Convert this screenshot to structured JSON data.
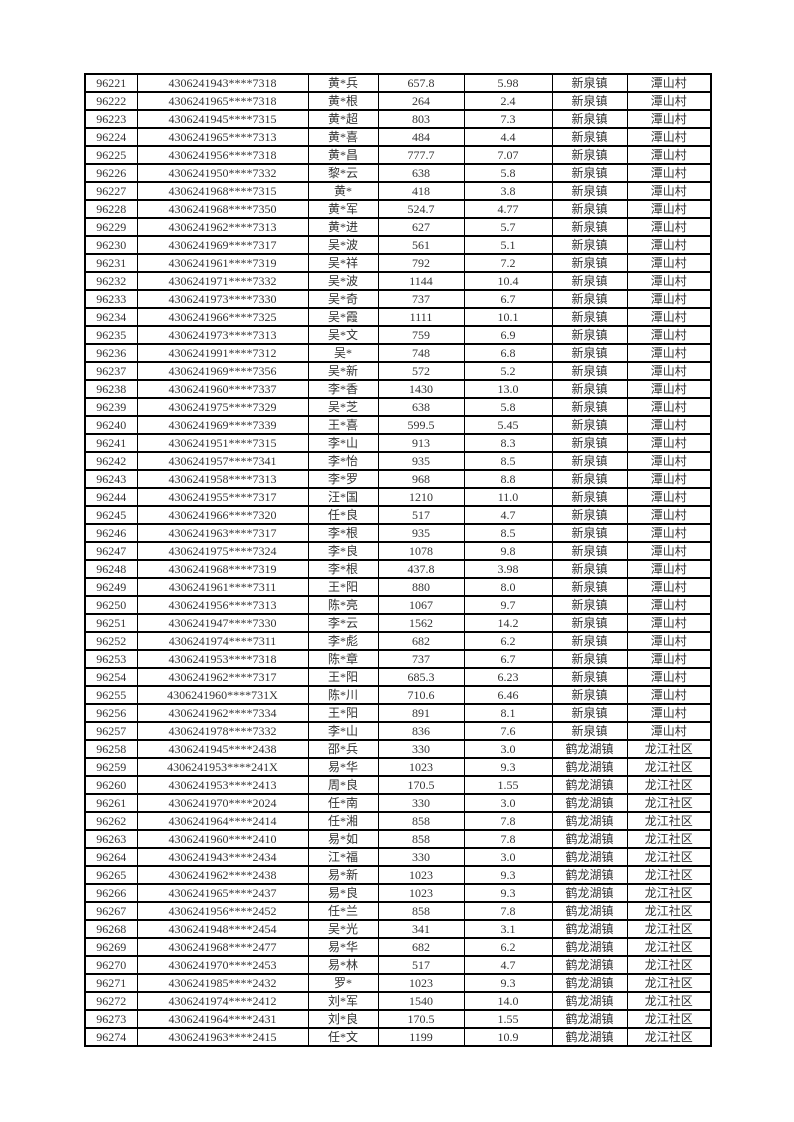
{
  "page": {
    "background_color": "#ffffff",
    "text_color": "#333333",
    "border_color": "#000000"
  },
  "table": {
    "rows": [
      [
        "96221",
        "4306241943****7318",
        "黄*兵",
        "657.8",
        "5.98",
        "新泉镇",
        "潭山村"
      ],
      [
        "96222",
        "4306241965****7318",
        "黄*根",
        "264",
        "2.4",
        "新泉镇",
        "潭山村"
      ],
      [
        "96223",
        "4306241945****7315",
        "黄*超",
        "803",
        "7.3",
        "新泉镇",
        "潭山村"
      ],
      [
        "96224",
        "4306241965****7313",
        "黄*喜",
        "484",
        "4.4",
        "新泉镇",
        "潭山村"
      ],
      [
        "96225",
        "4306241956****7318",
        "黄*昌",
        "777.7",
        "7.07",
        "新泉镇",
        "潭山村"
      ],
      [
        "96226",
        "4306241950****7332",
        "黎*云",
        "638",
        "5.8",
        "新泉镇",
        "潭山村"
      ],
      [
        "96227",
        "4306241968****7315",
        "黄*",
        "418",
        "3.8",
        "新泉镇",
        "潭山村"
      ],
      [
        "96228",
        "4306241968****7350",
        "黄*军",
        "524.7",
        "4.77",
        "新泉镇",
        "潭山村"
      ],
      [
        "96229",
        "4306241962****7313",
        "黄*进",
        "627",
        "5.7",
        "新泉镇",
        "潭山村"
      ],
      [
        "96230",
        "4306241969****7317",
        "吴*波",
        "561",
        "5.1",
        "新泉镇",
        "潭山村"
      ],
      [
        "96231",
        "4306241961****7319",
        "吴*祥",
        "792",
        "7.2",
        "新泉镇",
        "潭山村"
      ],
      [
        "96232",
        "4306241971****7332",
        "吴*波",
        "1144",
        "10.4",
        "新泉镇",
        "潭山村"
      ],
      [
        "96233",
        "4306241973****7330",
        "吴*奇",
        "737",
        "6.7",
        "新泉镇",
        "潭山村"
      ],
      [
        "96234",
        "4306241966****7325",
        "吴*霞",
        "1111",
        "10.1",
        "新泉镇",
        "潭山村"
      ],
      [
        "96235",
        "4306241973****7313",
        "吴*文",
        "759",
        "6.9",
        "新泉镇",
        "潭山村"
      ],
      [
        "96236",
        "4306241991****7312",
        "吴*",
        "748",
        "6.8",
        "新泉镇",
        "潭山村"
      ],
      [
        "96237",
        "4306241969****7356",
        "吴*新",
        "572",
        "5.2",
        "新泉镇",
        "潭山村"
      ],
      [
        "96238",
        "4306241960****7337",
        "李*香",
        "1430",
        "13.0",
        "新泉镇",
        "潭山村"
      ],
      [
        "96239",
        "4306241975****7329",
        "吴*芝",
        "638",
        "5.8",
        "新泉镇",
        "潭山村"
      ],
      [
        "96240",
        "4306241969****7339",
        "王*喜",
        "599.5",
        "5.45",
        "新泉镇",
        "潭山村"
      ],
      [
        "96241",
        "4306241951****7315",
        "李*山",
        "913",
        "8.3",
        "新泉镇",
        "潭山村"
      ],
      [
        "96242",
        "4306241957****7341",
        "李*怡",
        "935",
        "8.5",
        "新泉镇",
        "潭山村"
      ],
      [
        "96243",
        "4306241958****7313",
        "李*罗",
        "968",
        "8.8",
        "新泉镇",
        "潭山村"
      ],
      [
        "96244",
        "4306241955****7317",
        "汪*国",
        "1210",
        "11.0",
        "新泉镇",
        "潭山村"
      ],
      [
        "96245",
        "4306241966****7320",
        "任*良",
        "517",
        "4.7",
        "新泉镇",
        "潭山村"
      ],
      [
        "96246",
        "4306241963****7317",
        "李*根",
        "935",
        "8.5",
        "新泉镇",
        "潭山村"
      ],
      [
        "96247",
        "4306241975****7324",
        "李*良",
        "1078",
        "9.8",
        "新泉镇",
        "潭山村"
      ],
      [
        "96248",
        "4306241968****7319",
        "李*根",
        "437.8",
        "3.98",
        "新泉镇",
        "潭山村"
      ],
      [
        "96249",
        "4306241961****7311",
        "王*阳",
        "880",
        "8.0",
        "新泉镇",
        "潭山村"
      ],
      [
        "96250",
        "4306241956****7313",
        "陈*亮",
        "1067",
        "9.7",
        "新泉镇",
        "潭山村"
      ],
      [
        "96251",
        "4306241947****7330",
        "李*云",
        "1562",
        "14.2",
        "新泉镇",
        "潭山村"
      ],
      [
        "96252",
        "4306241974****7311",
        "李*彪",
        "682",
        "6.2",
        "新泉镇",
        "潭山村"
      ],
      [
        "96253",
        "4306241953****7318",
        "陈*章",
        "737",
        "6.7",
        "新泉镇",
        "潭山村"
      ],
      [
        "96254",
        "4306241962****7317",
        "王*阳",
        "685.3",
        "6.23",
        "新泉镇",
        "潭山村"
      ],
      [
        "96255",
        "4306241960****731X",
        "陈*川",
        "710.6",
        "6.46",
        "新泉镇",
        "潭山村"
      ],
      [
        "96256",
        "4306241962****7334",
        "王*阳",
        "891",
        "8.1",
        "新泉镇",
        "潭山村"
      ],
      [
        "96257",
        "4306241978****7332",
        "李*山",
        "836",
        "7.6",
        "新泉镇",
        "潭山村"
      ],
      [
        "96258",
        "4306241945****2438",
        "邵*兵",
        "330",
        "3.0",
        "鹤龙湖镇",
        "龙江社区"
      ],
      [
        "96259",
        "4306241953****241X",
        "易*华",
        "1023",
        "9.3",
        "鹤龙湖镇",
        "龙江社区"
      ],
      [
        "96260",
        "4306241953****2413",
        "周*良",
        "170.5",
        "1.55",
        "鹤龙湖镇",
        "龙江社区"
      ],
      [
        "96261",
        "4306241970****2024",
        "任*南",
        "330",
        "3.0",
        "鹤龙湖镇",
        "龙江社区"
      ],
      [
        "96262",
        "4306241964****2414",
        "任*湘",
        "858",
        "7.8",
        "鹤龙湖镇",
        "龙江社区"
      ],
      [
        "96263",
        "4306241960****2410",
        "易*如",
        "858",
        "7.8",
        "鹤龙湖镇",
        "龙江社区"
      ],
      [
        "96264",
        "4306241943****2434",
        "江*福",
        "330",
        "3.0",
        "鹤龙湖镇",
        "龙江社区"
      ],
      [
        "96265",
        "4306241962****2438",
        "易*新",
        "1023",
        "9.3",
        "鹤龙湖镇",
        "龙江社区"
      ],
      [
        "96266",
        "4306241965****2437",
        "易*良",
        "1023",
        "9.3",
        "鹤龙湖镇",
        "龙江社区"
      ],
      [
        "96267",
        "4306241956****2452",
        "任*兰",
        "858",
        "7.8",
        "鹤龙湖镇",
        "龙江社区"
      ],
      [
        "96268",
        "4306241948****2454",
        "吴*光",
        "341",
        "3.1",
        "鹤龙湖镇",
        "龙江社区"
      ],
      [
        "96269",
        "4306241968****2477",
        "易*华",
        "682",
        "6.2",
        "鹤龙湖镇",
        "龙江社区"
      ],
      [
        "96270",
        "4306241970****2453",
        "易*林",
        "517",
        "4.7",
        "鹤龙湖镇",
        "龙江社区"
      ],
      [
        "96271",
        "4306241985****2432",
        "罗*",
        "1023",
        "9.3",
        "鹤龙湖镇",
        "龙江社区"
      ],
      [
        "96272",
        "4306241974****2412",
        "刘*军",
        "1540",
        "14.0",
        "鹤龙湖镇",
        "龙江社区"
      ],
      [
        "96273",
        "4306241964****2431",
        "刘*良",
        "170.5",
        "1.55",
        "鹤龙湖镇",
        "龙江社区"
      ],
      [
        "96274",
        "4306241963****2415",
        "任*文",
        "1199",
        "10.9",
        "鹤龙湖镇",
        "龙江社区"
      ]
    ]
  }
}
